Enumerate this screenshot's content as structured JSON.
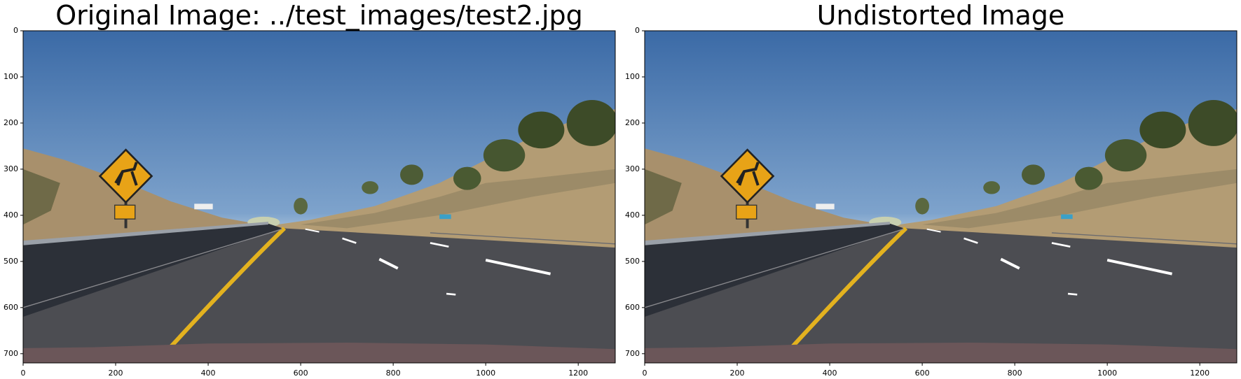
{
  "chart_data": [
    {
      "type": "image",
      "title": "Original Image: ../test_images/test2.jpg",
      "xlim": [
        0,
        1280
      ],
      "ylim": [
        720,
        0
      ],
      "xticks": [
        0,
        200,
        400,
        600,
        800,
        1000,
        1200
      ],
      "yticks": [
        0,
        100,
        200,
        300,
        400,
        500,
        600,
        700
      ]
    },
    {
      "type": "image",
      "title": "Undistorted Image",
      "xlim": [
        0,
        1280
      ],
      "ylim": [
        720,
        0
      ],
      "xticks": [
        0,
        200,
        400,
        600,
        800,
        1000,
        1200
      ],
      "yticks": [
        0,
        100,
        200,
        300,
        400,
        500,
        600,
        700
      ]
    }
  ]
}
